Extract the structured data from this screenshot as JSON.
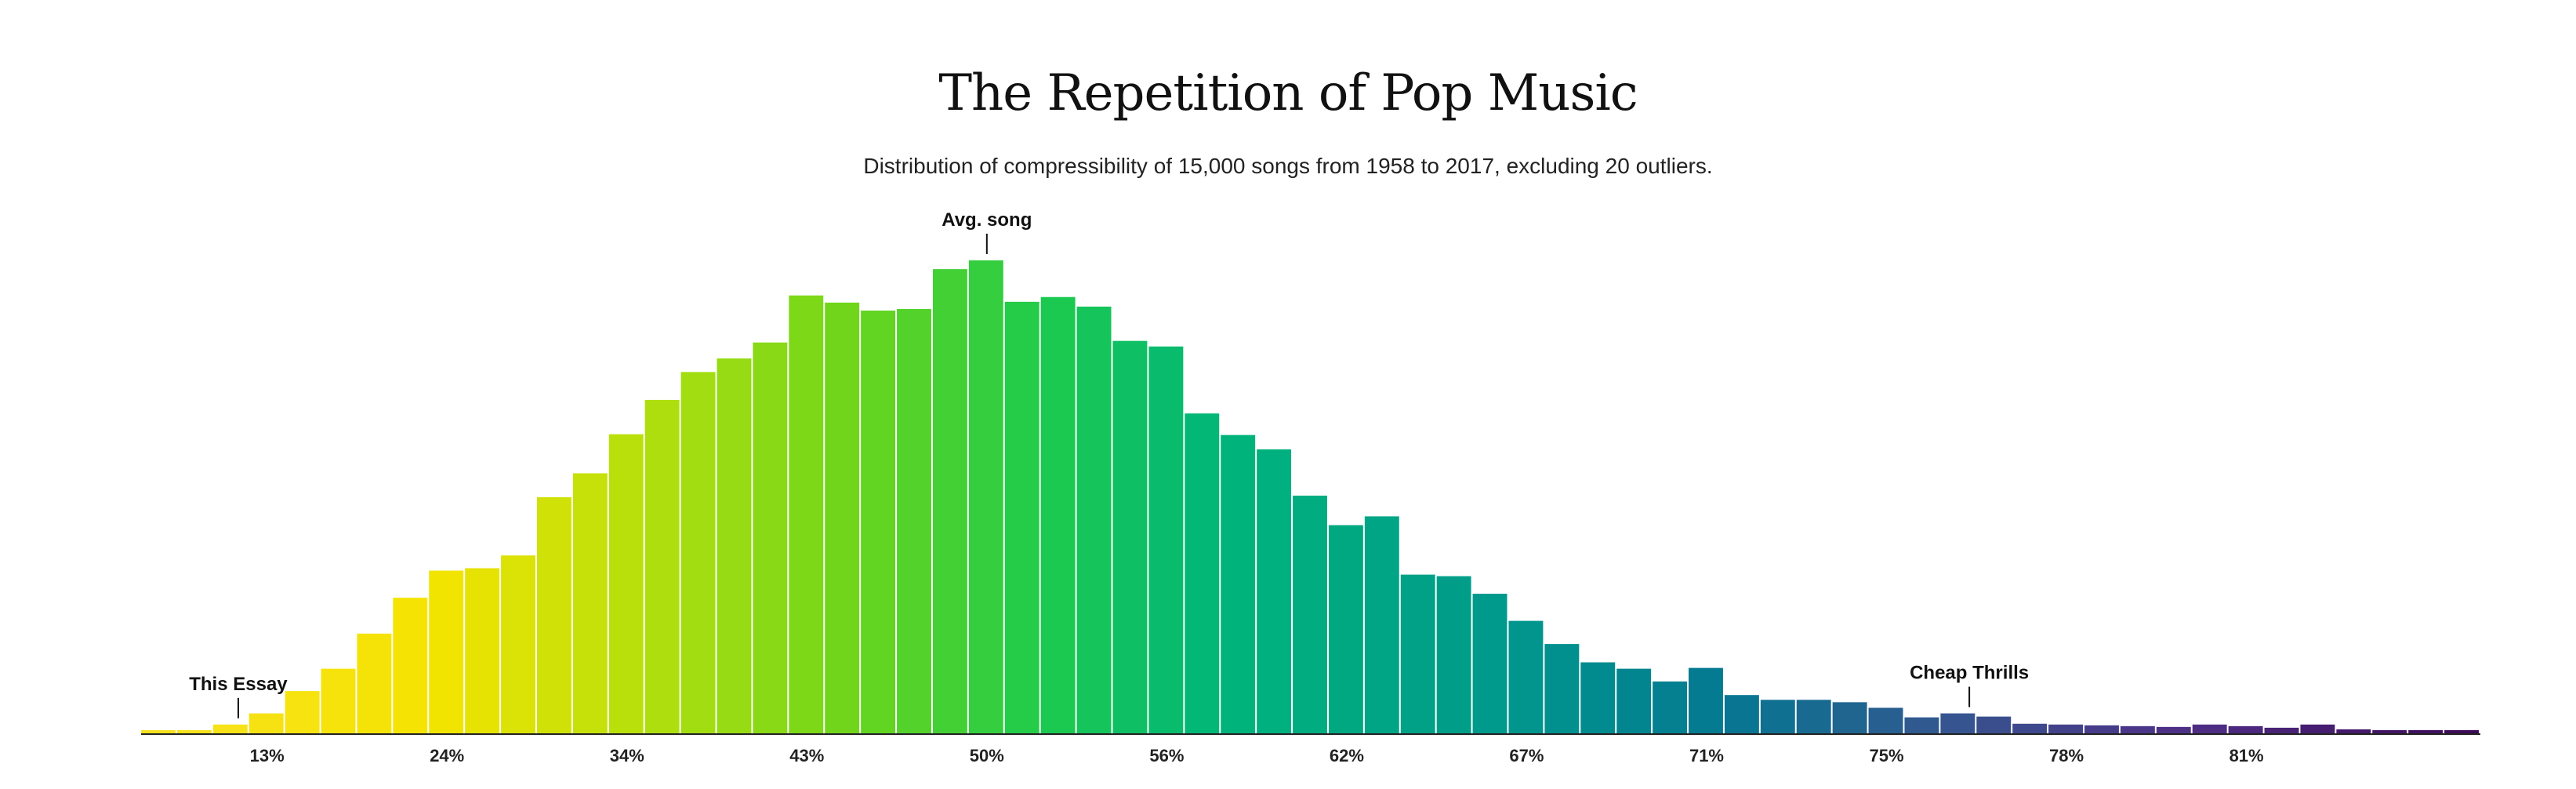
{
  "chart_data": {
    "type": "bar",
    "title": "The Repetition of Pop Music",
    "subtitle": "Distribution of compressibility of 15,000 songs from 1958 to 2017, excluding 20 outliers.",
    "xlabel": "",
    "ylabel": "",
    "grid": false,
    "legend": "none",
    "ylim": [
      0,
      590
    ],
    "values": [
      4,
      4,
      11,
      25,
      53,
      81,
      125,
      170,
      204,
      207,
      223,
      296,
      326,
      375,
      418,
      453,
      470,
      490,
      549,
      540,
      530,
      532,
      582,
      593,
      541,
      547,
      535,
      492,
      485,
      401,
      374,
      356,
      298,
      261,
      272,
      199,
      197,
      175,
      141,
      112,
      89,
      81,
      65,
      82,
      48,
      42,
      42,
      39,
      32,
      20,
      25,
      21,
      12,
      11,
      10,
      9,
      8,
      11,
      9,
      7,
      11,
      5,
      4,
      4,
      4
    ],
    "tick_labels": [
      {
        "label": "13%",
        "bin": 3
      },
      {
        "label": "24%",
        "bin": 8
      },
      {
        "label": "34%",
        "bin": 13
      },
      {
        "label": "43%",
        "bin": 18
      },
      {
        "label": "50%",
        "bin": 23
      },
      {
        "label": "56%",
        "bin": 28
      },
      {
        "label": "62%",
        "bin": 33
      },
      {
        "label": "67%",
        "bin": 38
      },
      {
        "label": "71%",
        "bin": 43
      },
      {
        "label": "75%",
        "bin": 48
      },
      {
        "label": "78%",
        "bin": 53
      },
      {
        "label": "81%",
        "bin": 58
      }
    ],
    "annotations": [
      {
        "text": "This Essay",
        "bin": 2.2
      },
      {
        "text": "Avg. song",
        "bin": 23
      },
      {
        "text": "Cheap Thrills",
        "bin": 50.3
      }
    ]
  }
}
